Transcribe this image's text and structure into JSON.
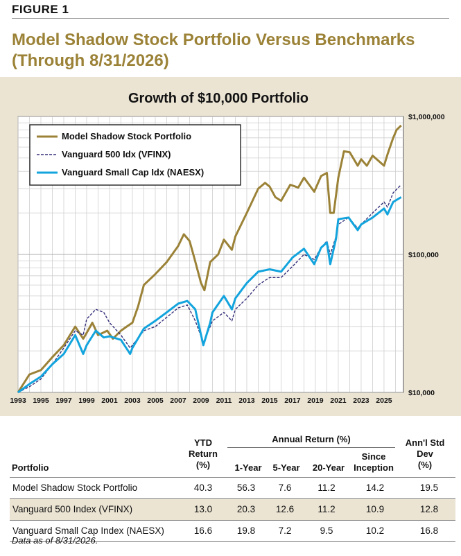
{
  "figure_label": "FIGURE 1",
  "title_line1": "Model Shadow Stock Portfolio Versus Benchmarks",
  "title_line2": "(Through 8/31/2026)",
  "colors": {
    "gold": "#9b8237",
    "navy": "#35317a",
    "cyan": "#13a4dd",
    "panel": "#ebe4d3"
  },
  "chart_data": {
    "type": "line",
    "title": "Growth of $10,000 Portfolio",
    "x_ticks": [
      "1993",
      "1995",
      "1997",
      "1999",
      "2001",
      "2003",
      "2005",
      "2007",
      "2009",
      "2011",
      "2013",
      "2015",
      "2017",
      "2019",
      "2021",
      "2023",
      "2025"
    ],
    "xlim": [
      1993,
      2026.7
    ],
    "y_scale": "log",
    "ylim": [
      10000,
      1000000
    ],
    "y_ticks": [
      {
        "value": 10000,
        "label": "$10,000"
      },
      {
        "value": 100000,
        "label": "$100,000"
      },
      {
        "value": 1000000,
        "label": "$1,000,000"
      }
    ],
    "grid": true,
    "legend_position": "top-left",
    "series": [
      {
        "name": "Model Shadow Stock Portfolio",
        "color": "#9b8237",
        "style": "solid",
        "points": [
          [
            1993,
            10000
          ],
          [
            1994,
            13500
          ],
          [
            1995,
            14500
          ],
          [
            1996,
            18000
          ],
          [
            1997,
            22000
          ],
          [
            1998,
            30000
          ],
          [
            1998.7,
            24500
          ],
          [
            1999,
            27000
          ],
          [
            1999.5,
            32000
          ],
          [
            2000,
            26000
          ],
          [
            2000.8,
            28000
          ],
          [
            2001.3,
            24500
          ],
          [
            2002,
            28000
          ],
          [
            2002.5,
            30000
          ],
          [
            2003,
            32000
          ],
          [
            2003.5,
            42000
          ],
          [
            2004,
            60000
          ],
          [
            2005,
            72000
          ],
          [
            2006,
            88000
          ],
          [
            2007,
            115000
          ],
          [
            2007.5,
            140000
          ],
          [
            2008,
            125000
          ],
          [
            2008.4,
            95000
          ],
          [
            2009,
            62000
          ],
          [
            2009.3,
            55000
          ],
          [
            2009.8,
            88000
          ],
          [
            2010.5,
            100000
          ],
          [
            2011,
            128000
          ],
          [
            2011.7,
            108000
          ],
          [
            2012,
            135000
          ],
          [
            2013,
            200000
          ],
          [
            2014,
            300000
          ],
          [
            2014.6,
            330000
          ],
          [
            2015,
            310000
          ],
          [
            2015.5,
            260000
          ],
          [
            2016,
            245000
          ],
          [
            2016.8,
            320000
          ],
          [
            2017.5,
            305000
          ],
          [
            2018,
            360000
          ],
          [
            2018.9,
            285000
          ],
          [
            2019.5,
            370000
          ],
          [
            2020,
            390000
          ],
          [
            2020.3,
            200000
          ],
          [
            2020.6,
            200000
          ],
          [
            2021,
            360000
          ],
          [
            2021.5,
            560000
          ],
          [
            2022,
            550000
          ],
          [
            2022.7,
            440000
          ],
          [
            2023,
            490000
          ],
          [
            2023.5,
            440000
          ],
          [
            2024,
            520000
          ],
          [
            2024.6,
            470000
          ],
          [
            2025,
            440000
          ],
          [
            2025.3,
            530000
          ],
          [
            2025.8,
            700000
          ],
          [
            2026.1,
            800000
          ],
          [
            2026.5,
            860000
          ]
        ]
      },
      {
        "name": "Vanguard 500 Idx (VFINX)",
        "color": "#35317a",
        "style": "dashed",
        "points": [
          [
            1993,
            10000
          ],
          [
            1994,
            11000
          ],
          [
            1995,
            12500
          ],
          [
            1996,
            16000
          ],
          [
            1997,
            21000
          ],
          [
            1998,
            28000
          ],
          [
            1998.7,
            26000
          ],
          [
            1999,
            34000
          ],
          [
            1999.8,
            40000
          ],
          [
            2000.5,
            38000
          ],
          [
            2001,
            32000
          ],
          [
            2002,
            26000
          ],
          [
            2002.8,
            21000
          ],
          [
            2003,
            22000
          ],
          [
            2004,
            28000
          ],
          [
            2005,
            30000
          ],
          [
            2006,
            35000
          ],
          [
            2007,
            41000
          ],
          [
            2007.8,
            43000
          ],
          [
            2008.5,
            33000
          ],
          [
            2009.2,
            23000
          ],
          [
            2009.8,
            30000
          ],
          [
            2010,
            33000
          ],
          [
            2011,
            38000
          ],
          [
            2011.7,
            33000
          ],
          [
            2012,
            40000
          ],
          [
            2013,
            48000
          ],
          [
            2014,
            60000
          ],
          [
            2015,
            68000
          ],
          [
            2016,
            68000
          ],
          [
            2017,
            82000
          ],
          [
            2018,
            100000
          ],
          [
            2018.9,
            92000
          ],
          [
            2019.5,
            112000
          ],
          [
            2020,
            125000
          ],
          [
            2020.3,
            100000
          ],
          [
            2020.8,
            135000
          ],
          [
            2021,
            165000
          ],
          [
            2021.9,
            185000
          ],
          [
            2022.7,
            155000
          ],
          [
            2023,
            165000
          ],
          [
            2024,
            200000
          ],
          [
            2025,
            240000
          ],
          [
            2025.3,
            220000
          ],
          [
            2025.8,
            280000
          ],
          [
            2026.5,
            320000
          ]
        ]
      },
      {
        "name": "Vanguard Small Cap Idx (NAESX)",
        "color": "#13a4dd",
        "style": "solid",
        "points": [
          [
            1993,
            10000
          ],
          [
            1994,
            11500
          ],
          [
            1995,
            13000
          ],
          [
            1996,
            16000
          ],
          [
            1997,
            19000
          ],
          [
            1998,
            26000
          ],
          [
            1998.7,
            19000
          ],
          [
            1999,
            22000
          ],
          [
            1999.8,
            28000
          ],
          [
            2000.5,
            25000
          ],
          [
            2001,
            25500
          ],
          [
            2002,
            24000
          ],
          [
            2002.8,
            19000
          ],
          [
            2003,
            21000
          ],
          [
            2004,
            29000
          ],
          [
            2005,
            33000
          ],
          [
            2006,
            38000
          ],
          [
            2007,
            44000
          ],
          [
            2007.8,
            46000
          ],
          [
            2008.5,
            40000
          ],
          [
            2009.2,
            22000
          ],
          [
            2009.8,
            32000
          ],
          [
            2010,
            38000
          ],
          [
            2011,
            50000
          ],
          [
            2011.7,
            40000
          ],
          [
            2012,
            48000
          ],
          [
            2013,
            62000
          ],
          [
            2014,
            75000
          ],
          [
            2015,
            78000
          ],
          [
            2016,
            75000
          ],
          [
            2017,
            95000
          ],
          [
            2018,
            110000
          ],
          [
            2018.9,
            85000
          ],
          [
            2019.5,
            112000
          ],
          [
            2020,
            122000
          ],
          [
            2020.3,
            85000
          ],
          [
            2020.8,
            130000
          ],
          [
            2021,
            180000
          ],
          [
            2021.9,
            185000
          ],
          [
            2022.7,
            150000
          ],
          [
            2023,
            165000
          ],
          [
            2024,
            185000
          ],
          [
            2025,
            215000
          ],
          [
            2025.3,
            195000
          ],
          [
            2025.8,
            240000
          ],
          [
            2026.5,
            260000
          ]
        ]
      }
    ]
  },
  "table": {
    "headers": {
      "portfolio": "Portfolio",
      "ytd_l1": "YTD",
      "ytd_l2": "Return",
      "ytd_l3": "(%)",
      "annual_group": "Annual Return (%)",
      "one_year": "1-Year",
      "five_year": "5-Year",
      "twenty_year": "20-Year",
      "since_l1": "Since",
      "since_l2": "Inception",
      "std_l1": "Ann'l Std",
      "std_l2": "Dev",
      "std_l3": "(%)"
    },
    "rows": [
      {
        "name": "Model Shadow Stock Portfolio",
        "ytd": "40.3",
        "one": "56.3",
        "five": "7.6",
        "twenty": "11.2",
        "since": "14.2",
        "std": "19.5"
      },
      {
        "name": "Vanguard 500 Index (VFINX)",
        "ytd": "13.0",
        "one": "20.3",
        "five": "12.6",
        "twenty": "11.2",
        "since": "10.9",
        "std": "12.8"
      },
      {
        "name": "Vanguard Small Cap Index (NAESX)",
        "ytd": "16.6",
        "one": "19.8",
        "five": "7.2",
        "twenty": "9.5",
        "since": "10.2",
        "std": "16.8"
      }
    ]
  },
  "footnote": "Data as of 8/31/2026."
}
